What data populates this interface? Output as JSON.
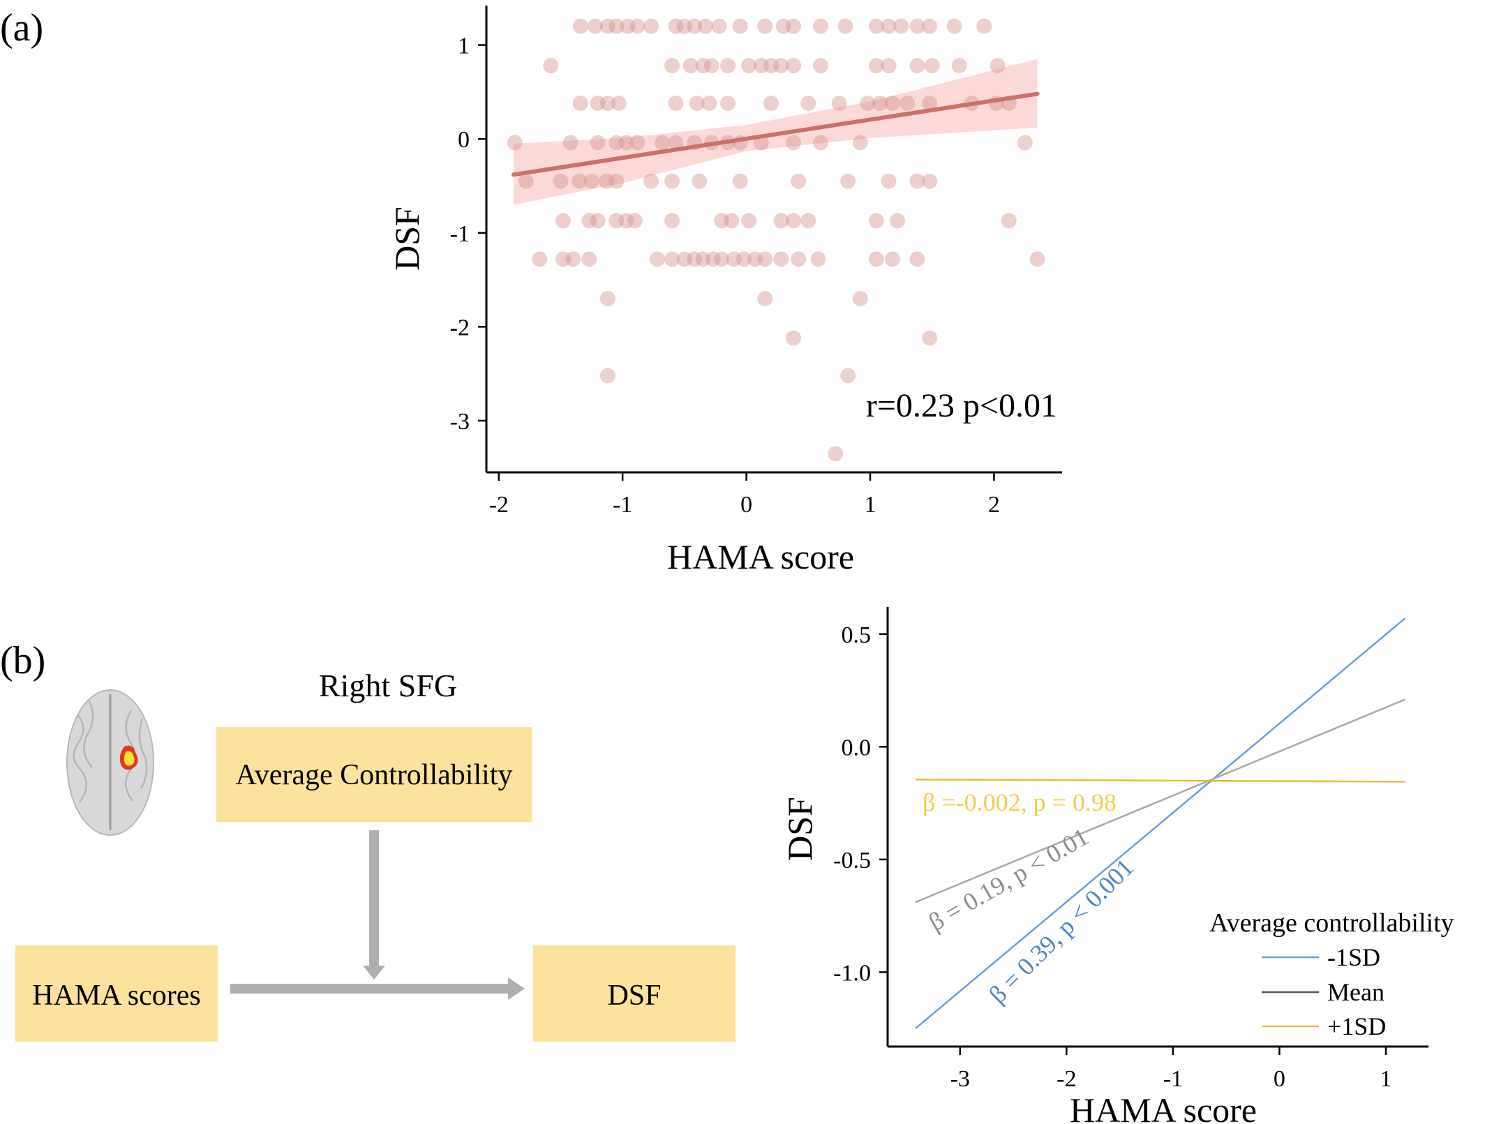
{
  "figure": {
    "panel_a_label": "(a)",
    "panel_b_label": "(b)"
  },
  "diagram": {
    "title": "Right SFG",
    "moderator_label": "Average Controllability",
    "predictor_label": "HAMA scores",
    "outcome_label": "DSF",
    "box_color": "#fbe39e",
    "arrow_color": "#b0aeae"
  },
  "chart_data": [
    {
      "type": "scatter",
      "xlabel": "HAMA score",
      "ylabel": "DSF",
      "xlim": [
        -2.1,
        2.55
      ],
      "ylim": [
        -3.55,
        1.42
      ],
      "xticks": [
        -2,
        -1,
        0,
        1,
        2
      ],
      "yticks": [
        1,
        0,
        -1,
        -2,
        -3
      ],
      "annotation": "r=0.23 p<0.01",
      "point_color": "#cf8f8a",
      "fit": {
        "x": [
          -1.88,
          2.35
        ],
        "y": [
          -0.38,
          0.48
        ],
        "color": "#c87269"
      },
      "band": {
        "x": [
          -1.88,
          -1,
          0,
          1,
          2.35
        ],
        "upper": [
          -0.05,
          0.01,
          0.15,
          0.4,
          0.85
        ],
        "lower": [
          -0.7,
          -0.47,
          -0.13,
          0.01,
          0.12
        ],
        "color": "#fbd0d0"
      },
      "points": [
        [
          -1.34,
          1.2
        ],
        [
          -1.22,
          1.2
        ],
        [
          -1.12,
          1.2
        ],
        [
          -1.05,
          1.2
        ],
        [
          -0.96,
          1.2
        ],
        [
          -0.88,
          1.2
        ],
        [
          -0.77,
          1.2
        ],
        [
          -0.57,
          1.2
        ],
        [
          -0.5,
          1.2
        ],
        [
          -0.42,
          1.2
        ],
        [
          -0.33,
          1.2
        ],
        [
          -0.22,
          1.2
        ],
        [
          -0.05,
          1.2
        ],
        [
          0.15,
          1.2
        ],
        [
          0.3,
          1.2
        ],
        [
          0.38,
          1.2
        ],
        [
          0.6,
          1.2
        ],
        [
          0.8,
          1.2
        ],
        [
          1.05,
          1.2
        ],
        [
          1.15,
          1.2
        ],
        [
          1.25,
          1.2
        ],
        [
          1.38,
          1.2
        ],
        [
          1.48,
          1.2
        ],
        [
          1.68,
          1.2
        ],
        [
          1.92,
          1.2
        ],
        [
          -1.58,
          0.78
        ],
        [
          -0.6,
          0.78
        ],
        [
          -0.45,
          0.78
        ],
        [
          -0.35,
          0.78
        ],
        [
          -0.28,
          0.78
        ],
        [
          -0.15,
          0.78
        ],
        [
          0.02,
          0.78
        ],
        [
          0.12,
          0.78
        ],
        [
          0.2,
          0.78
        ],
        [
          0.28,
          0.78
        ],
        [
          0.38,
          0.78
        ],
        [
          0.6,
          0.78
        ],
        [
          1.05,
          0.78
        ],
        [
          1.15,
          0.78
        ],
        [
          1.38,
          0.78
        ],
        [
          1.5,
          0.78
        ],
        [
          1.72,
          0.78
        ],
        [
          2.03,
          0.78
        ],
        [
          -1.34,
          0.38
        ],
        [
          -1.2,
          0.38
        ],
        [
          -1.12,
          0.38
        ],
        [
          -1.03,
          0.38
        ],
        [
          -0.57,
          0.38
        ],
        [
          -0.4,
          0.38
        ],
        [
          -0.3,
          0.38
        ],
        [
          -0.15,
          0.38
        ],
        [
          0.2,
          0.38
        ],
        [
          0.5,
          0.38
        ],
        [
          0.75,
          0.38
        ],
        [
          0.98,
          0.38
        ],
        [
          1.08,
          0.38
        ],
        [
          1.18,
          0.38
        ],
        [
          1.3,
          0.38
        ],
        [
          1.48,
          0.38
        ],
        [
          1.82,
          0.38
        ],
        [
          2.02,
          0.38
        ],
        [
          2.12,
          0.38
        ],
        [
          -1.87,
          -0.04
        ],
        [
          -1.42,
          -0.04
        ],
        [
          -1.2,
          -0.04
        ],
        [
          -1.05,
          -0.04
        ],
        [
          -0.97,
          -0.04
        ],
        [
          -0.88,
          -0.04
        ],
        [
          -0.68,
          -0.04
        ],
        [
          -0.57,
          -0.04
        ],
        [
          -0.42,
          -0.04
        ],
        [
          -0.28,
          -0.04
        ],
        [
          -0.15,
          -0.04
        ],
        [
          -0.05,
          -0.04
        ],
        [
          0.12,
          -0.04
        ],
        [
          0.38,
          -0.04
        ],
        [
          0.6,
          -0.04
        ],
        [
          0.92,
          -0.04
        ],
        [
          2.25,
          -0.04
        ],
        [
          -1.78,
          -0.45
        ],
        [
          -1.5,
          -0.45
        ],
        [
          -1.35,
          -0.45
        ],
        [
          -1.25,
          -0.45
        ],
        [
          -1.13,
          -0.45
        ],
        [
          -1.05,
          -0.45
        ],
        [
          -0.77,
          -0.45
        ],
        [
          -0.6,
          -0.45
        ],
        [
          -0.38,
          -0.45
        ],
        [
          -0.05,
          -0.45
        ],
        [
          0.42,
          -0.45
        ],
        [
          0.82,
          -0.45
        ],
        [
          1.15,
          -0.45
        ],
        [
          1.38,
          -0.45
        ],
        [
          1.48,
          -0.45
        ],
        [
          -1.48,
          -0.87
        ],
        [
          -1.27,
          -0.87
        ],
        [
          -1.2,
          -0.87
        ],
        [
          -1.05,
          -0.87
        ],
        [
          -0.97,
          -0.87
        ],
        [
          -0.9,
          -0.87
        ],
        [
          -0.6,
          -0.87
        ],
        [
          -0.2,
          -0.87
        ],
        [
          -0.12,
          -0.87
        ],
        [
          0.02,
          -0.87
        ],
        [
          0.28,
          -0.87
        ],
        [
          0.38,
          -0.87
        ],
        [
          0.5,
          -0.87
        ],
        [
          1.05,
          -0.87
        ],
        [
          1.22,
          -0.87
        ],
        [
          2.12,
          -0.87
        ],
        [
          -1.67,
          -1.28
        ],
        [
          -1.48,
          -1.28
        ],
        [
          -1.4,
          -1.28
        ],
        [
          -1.27,
          -1.28
        ],
        [
          -0.72,
          -1.28
        ],
        [
          -0.6,
          -1.28
        ],
        [
          -0.5,
          -1.28
        ],
        [
          -0.42,
          -1.28
        ],
        [
          -0.35,
          -1.28
        ],
        [
          -0.27,
          -1.28
        ],
        [
          -0.2,
          -1.28
        ],
        [
          -0.1,
          -1.28
        ],
        [
          -0.02,
          -1.28
        ],
        [
          0.07,
          -1.28
        ],
        [
          0.15,
          -1.28
        ],
        [
          0.28,
          -1.28
        ],
        [
          0.42,
          -1.28
        ],
        [
          0.58,
          -1.28
        ],
        [
          1.05,
          -1.28
        ],
        [
          1.18,
          -1.28
        ],
        [
          1.38,
          -1.28
        ],
        [
          2.35,
          -1.28
        ],
        [
          -1.12,
          -1.7
        ],
        [
          0.15,
          -1.7
        ],
        [
          0.92,
          -1.7
        ],
        [
          0.38,
          -2.12
        ],
        [
          1.48,
          -2.12
        ],
        [
          -1.12,
          -2.52
        ],
        [
          0.82,
          -2.52
        ],
        [
          0.72,
          -3.35
        ]
      ]
    },
    {
      "type": "line",
      "xlabel": "HAMA score",
      "ylabel": "DSF",
      "xlim": [
        -3.68,
        1.4
      ],
      "ylim": [
        -1.33,
        0.62
      ],
      "xticks": [
        -3,
        -2,
        -1,
        0,
        1
      ],
      "yticks": [
        0.5,
        0.0,
        -0.5,
        -1.0
      ],
      "ytick_labels": [
        "0.5",
        "0.0",
        "-0.5",
        "-1.0"
      ],
      "legend_title": "Average controllability",
      "legend_position": "bottom-right",
      "series": [
        {
          "name": "-1SD",
          "color": "#6b9fd6",
          "x": [
            -3.42,
            1.18
          ],
          "y": [
            -1.25,
            0.57
          ],
          "annotation": "β = 0.39, p < 0.001",
          "annotation_color": "#4a86c4"
        },
        {
          "name": "Mean",
          "color": "#a8a8a8",
          "legend_color": "#555555",
          "x": [
            -3.42,
            1.18
          ],
          "y": [
            -0.69,
            0.21
          ],
          "annotation": "β = 0.19, p < 0.01",
          "annotation_color": "#8c8c8c"
        },
        {
          "name": "+1SD",
          "color": "#f0b73c",
          "x": [
            -3.42,
            1.18
          ],
          "y": [
            -0.145,
            -0.155
          ],
          "annotation": "β =-0.002, p = 0.98",
          "annotation_color": "#f2cd4a"
        }
      ]
    }
  ]
}
